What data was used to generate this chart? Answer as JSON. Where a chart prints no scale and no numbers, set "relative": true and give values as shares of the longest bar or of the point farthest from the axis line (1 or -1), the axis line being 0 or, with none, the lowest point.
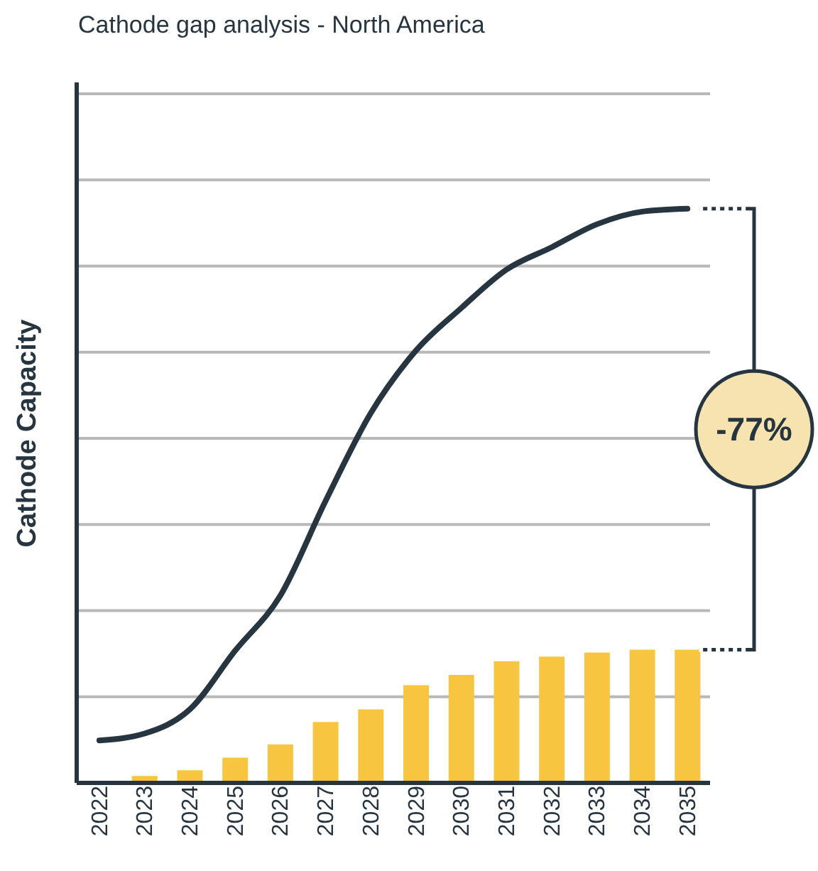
{
  "chart_data": {
    "type": "bar",
    "title": "Cathode gap analysis - North America",
    "ylabel": "Cathode Capacity",
    "relative": true,
    "grid": "y",
    "marker": "none",
    "line_style": "solid",
    "categories": [
      "2022",
      "2023",
      "2024",
      "2025",
      "2026",
      "2027",
      "2028",
      "2029",
      "2030",
      "2031",
      "2032",
      "2033",
      "2034",
      "2035"
    ],
    "series": [
      {
        "type": "line",
        "color": "#263540",
        "values": [
          0.074,
          0.086,
          0.128,
          0.23,
          0.326,
          0.491,
          0.644,
          0.753,
          0.827,
          0.894,
          0.933,
          0.973,
          0.995,
          1
        ]
      },
      {
        "color": "#f7c540",
        "values": [
          0,
          0.012,
          0.022,
          0.044,
          0.067,
          0.106,
          0.128,
          0.17,
          0.188,
          0.212,
          0.22,
          0.227,
          0.232,
          0.232
        ]
      }
    ],
    "annotations": [
      "-77%"
    ]
  }
}
